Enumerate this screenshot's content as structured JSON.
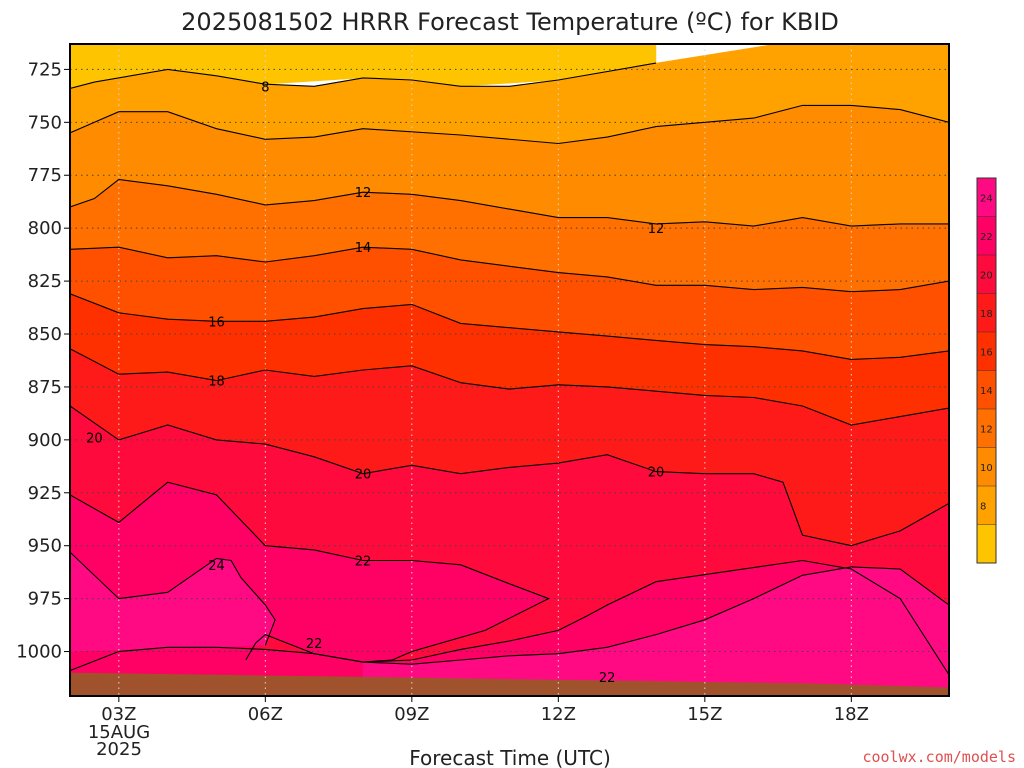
{
  "chart_data": {
    "type": "heatmap",
    "subtype": "filled-contour time-height cross-section",
    "title": "2025081502 HRRR Forecast Temperature (ºC) for KBID",
    "xlabel": "Forecast Time (UTC)",
    "ylabel": "",
    "x_ticks": [
      "03Z",
      "06Z",
      "09Z",
      "12Z",
      "15Z",
      "18Z"
    ],
    "x_date_lines": [
      "15AUG",
      "2025"
    ],
    "y_ticks": [
      "725",
      "750",
      "775",
      "800",
      "825",
      "850",
      "875",
      "900",
      "925",
      "950",
      "975",
      "1000"
    ],
    "y_range_hpa": [
      713,
      1021
    ],
    "x_range_hours": [
      2,
      20
    ],
    "grid": true,
    "colorbar_ticks": [
      "8",
      "10",
      "12",
      "14",
      "16",
      "18",
      "20",
      "22",
      "24"
    ],
    "colorbar_colors": [
      "#ffc400",
      "#ffa200",
      "#ff8c00",
      "#ff7000",
      "#ff5000",
      "#ff3000",
      "#ff1a1a",
      "#ff0a3c",
      "#ff0064",
      "#ff0a82"
    ],
    "colors": {
      "ground": "#a0522d",
      "contour": "#000000",
      "credit": "#e05050"
    },
    "series": [
      {
        "name": "8",
        "points": [
          [
            2,
            734
          ],
          [
            2.5,
            731
          ],
          [
            4,
            725
          ],
          [
            5,
            728
          ],
          [
            6,
            732
          ],
          [
            7,
            733
          ],
          [
            8,
            729
          ],
          [
            9,
            730
          ],
          [
            10,
            733
          ],
          [
            11,
            733
          ],
          [
            12,
            730
          ],
          [
            14,
            722
          ]
        ]
      },
      {
        "name": "10",
        "points": [
          [
            2,
            755
          ],
          [
            2.5,
            750
          ],
          [
            3,
            745
          ],
          [
            4,
            745
          ],
          [
            5,
            753
          ],
          [
            6,
            758
          ],
          [
            7,
            757
          ],
          [
            8,
            753
          ],
          [
            10,
            756
          ],
          [
            12,
            760
          ],
          [
            13,
            757
          ],
          [
            14,
            752
          ],
          [
            15,
            750
          ],
          [
            16,
            748
          ],
          [
            17,
            742
          ],
          [
            18,
            742
          ],
          [
            19,
            744
          ],
          [
            20,
            750
          ]
        ]
      },
      {
        "name": "12",
        "points": [
          [
            2,
            790
          ],
          [
            2.5,
            786
          ],
          [
            3,
            777
          ],
          [
            4,
            780
          ],
          [
            5,
            784
          ],
          [
            6,
            789
          ],
          [
            7,
            787
          ],
          [
            8,
            783
          ],
          [
            9,
            784
          ],
          [
            10,
            787
          ],
          [
            11,
            791
          ],
          [
            12,
            795
          ],
          [
            13,
            795
          ],
          [
            14,
            798
          ],
          [
            15,
            797
          ],
          [
            16,
            799
          ],
          [
            17,
            795
          ],
          [
            18,
            799
          ],
          [
            19,
            798
          ],
          [
            20,
            798
          ]
        ]
      },
      {
        "name": "14",
        "points": [
          [
            2,
            810
          ],
          [
            3,
            809
          ],
          [
            4,
            814
          ],
          [
            5,
            813
          ],
          [
            6,
            816
          ],
          [
            7,
            813
          ],
          [
            8,
            809
          ],
          [
            9,
            810
          ],
          [
            10,
            815
          ],
          [
            11,
            818
          ],
          [
            12,
            821
          ],
          [
            13,
            823
          ],
          [
            14,
            827
          ],
          [
            15,
            827
          ],
          [
            16,
            829
          ],
          [
            17,
            828
          ],
          [
            18,
            830
          ],
          [
            19,
            829
          ],
          [
            20,
            825
          ]
        ]
      },
      {
        "name": "16",
        "points": [
          [
            2,
            831
          ],
          [
            3,
            840
          ],
          [
            4,
            843
          ],
          [
            5,
            844
          ],
          [
            6,
            844
          ],
          [
            7,
            842
          ],
          [
            8,
            838
          ],
          [
            9,
            836
          ],
          [
            10,
            845
          ],
          [
            11,
            847
          ],
          [
            12,
            849
          ],
          [
            13,
            851
          ],
          [
            14,
            853
          ],
          [
            15,
            855
          ],
          [
            16,
            856
          ],
          [
            17,
            858
          ],
          [
            18,
            862
          ],
          [
            19,
            861
          ],
          [
            20,
            858
          ]
        ]
      },
      {
        "name": "18",
        "points": [
          [
            2,
            857
          ],
          [
            3,
            869
          ],
          [
            4,
            868
          ],
          [
            5,
            872
          ],
          [
            6,
            867
          ],
          [
            7,
            870
          ],
          [
            8,
            867
          ],
          [
            9,
            865
          ],
          [
            10,
            873
          ],
          [
            11,
            876
          ],
          [
            12,
            874
          ],
          [
            13,
            875
          ],
          [
            14,
            877
          ],
          [
            15,
            879
          ],
          [
            16,
            880
          ],
          [
            17,
            884
          ],
          [
            18,
            893
          ],
          [
            19,
            889
          ],
          [
            20,
            885
          ]
        ]
      },
      {
        "name": "20",
        "points": [
          [
            2,
            884
          ],
          [
            3,
            900
          ],
          [
            4,
            893
          ],
          [
            5,
            900
          ],
          [
            6,
            902
          ],
          [
            7,
            908
          ],
          [
            8,
            916
          ],
          [
            9,
            912
          ],
          [
            10,
            916
          ],
          [
            11,
            913
          ],
          [
            12,
            911
          ],
          [
            13,
            907
          ],
          [
            14,
            915
          ],
          [
            15,
            916
          ],
          [
            16,
            916
          ],
          [
            16.6,
            920
          ],
          [
            17,
            945
          ],
          [
            18,
            950
          ],
          [
            19,
            943
          ],
          [
            20,
            930
          ]
        ]
      },
      {
        "name": "22",
        "points": [
          [
            2,
            926
          ],
          [
            3,
            939
          ],
          [
            4,
            920
          ],
          [
            5,
            926
          ],
          [
            6,
            950
          ],
          [
            7,
            952
          ],
          [
            8,
            957
          ],
          [
            9,
            957
          ],
          [
            10,
            959
          ],
          [
            11,
            968
          ],
          [
            11.8,
            975
          ],
          [
            10.5,
            990
          ],
          [
            9,
            1000
          ],
          [
            8.6,
            1004
          ],
          [
            8,
            1005
          ],
          [
            7,
            1001
          ],
          [
            6,
            992
          ],
          [
            5.8,
            996
          ],
          [
            5.6,
            1004
          ]
        ]
      },
      {
        "name": "22",
        "points": [
          [
            2,
            1009
          ],
          [
            3,
            1000
          ],
          [
            4,
            998
          ],
          [
            5,
            998
          ],
          [
            6,
            999
          ],
          [
            6.5,
            1000
          ],
          [
            7,
            1001
          ],
          [
            8,
            1005
          ],
          [
            9,
            1004
          ],
          [
            10,
            999
          ],
          [
            11,
            995
          ],
          [
            12,
            990
          ],
          [
            12.6,
            983
          ],
          [
            13,
            978
          ],
          [
            14,
            967
          ],
          [
            15.5,
            962
          ],
          [
            17,
            957
          ],
          [
            18,
            961
          ],
          [
            19,
            975
          ],
          [
            20,
            1011
          ]
        ]
      },
      {
        "name": "24",
        "points": [
          [
            2,
            953
          ],
          [
            3,
            975
          ],
          [
            4,
            972
          ],
          [
            5,
            956
          ],
          [
            5.3,
            957
          ],
          [
            5.5,
            965
          ],
          [
            6,
            978
          ],
          [
            6.2,
            985
          ],
          [
            6,
            997
          ]
        ]
      },
      {
        "name": "24",
        "points": [
          [
            8,
            1005
          ],
          [
            9,
            1006
          ],
          [
            10,
            1004
          ],
          [
            11,
            1002
          ],
          [
            12,
            1001
          ],
          [
            13,
            998
          ],
          [
            14,
            992
          ],
          [
            15,
            985
          ],
          [
            16,
            975
          ],
          [
            17,
            964
          ],
          [
            18,
            960
          ],
          [
            19,
            961
          ],
          [
            20,
            978
          ]
        ]
      }
    ],
    "contour_labels": [
      {
        "text": "8",
        "x": 6,
        "y": 733
      },
      {
        "text": "12",
        "x": 8,
        "y": 783
      },
      {
        "text": "12",
        "x": 14,
        "y": 800
      },
      {
        "text": "14",
        "x": 8,
        "y": 809
      },
      {
        "text": "16",
        "x": 5,
        "y": 844
      },
      {
        "text": "18",
        "x": 5,
        "y": 872
      },
      {
        "text": "20",
        "x": 2.5,
        "y": 899
      },
      {
        "text": "20",
        "x": 8,
        "y": 916
      },
      {
        "text": "20",
        "x": 14,
        "y": 915
      },
      {
        "text": "22",
        "x": 8,
        "y": 957
      },
      {
        "text": "22",
        "x": 7,
        "y": 996
      },
      {
        "text": "22",
        "x": 13,
        "y": 1012
      },
      {
        "text": "24",
        "x": 5,
        "y": 959
      }
    ],
    "ground": [
      [
        2,
        1010
      ],
      [
        5,
        1011
      ],
      [
        8,
        1012
      ],
      [
        11,
        1013
      ],
      [
        14,
        1014
      ],
      [
        17,
        1015
      ],
      [
        20,
        1017
      ]
    ]
  },
  "credit": "coolwx.com/models"
}
